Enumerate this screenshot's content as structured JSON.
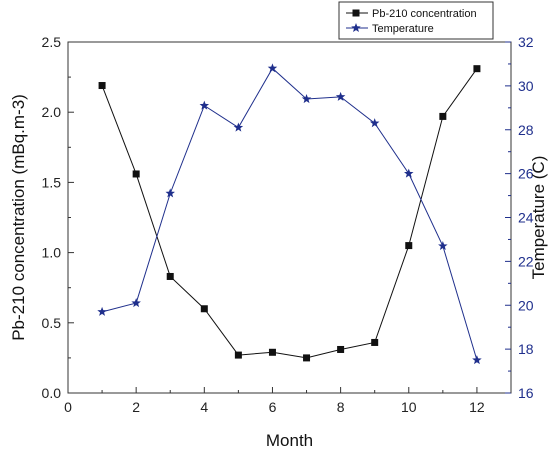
{
  "chart_data": {
    "type": "line",
    "x": [
      1,
      2,
      3,
      4,
      5,
      6,
      7,
      8,
      9,
      10,
      11,
      12
    ],
    "xlabel": "Month",
    "xlim": [
      0,
      13
    ],
    "xticks": [
      0,
      2,
      4,
      6,
      8,
      10,
      12
    ],
    "ylabel_left": "Pb-210 concentration (mBq.m-3)",
    "ylim_left": [
      0,
      2.5
    ],
    "yticks_left": [
      "0.0",
      "0.5",
      "1.0",
      "1.5",
      "2.0",
      "2.5"
    ],
    "ylabel_right": "Temperature (C)",
    "ylim_right": [
      16,
      32
    ],
    "yticks_right": [
      "16",
      "18",
      "20",
      "22",
      "24",
      "26",
      "28",
      "30",
      "32"
    ],
    "grid": false,
    "legend_position": "top-right",
    "series": [
      {
        "name": "Pb-210 concentration",
        "axis": "left",
        "marker": "square",
        "color": "#111111",
        "values": [
          2.19,
          1.56,
          0.83,
          0.6,
          0.27,
          0.29,
          0.25,
          0.31,
          0.36,
          1.05,
          1.97,
          2.31
        ]
      },
      {
        "name": "Temperature",
        "axis": "right",
        "marker": "star",
        "color": "#1f2f8c",
        "values": [
          19.7,
          20.1,
          25.1,
          29.1,
          28.1,
          30.8,
          29.4,
          29.5,
          28.3,
          26.0,
          22.7,
          17.5
        ]
      }
    ]
  }
}
